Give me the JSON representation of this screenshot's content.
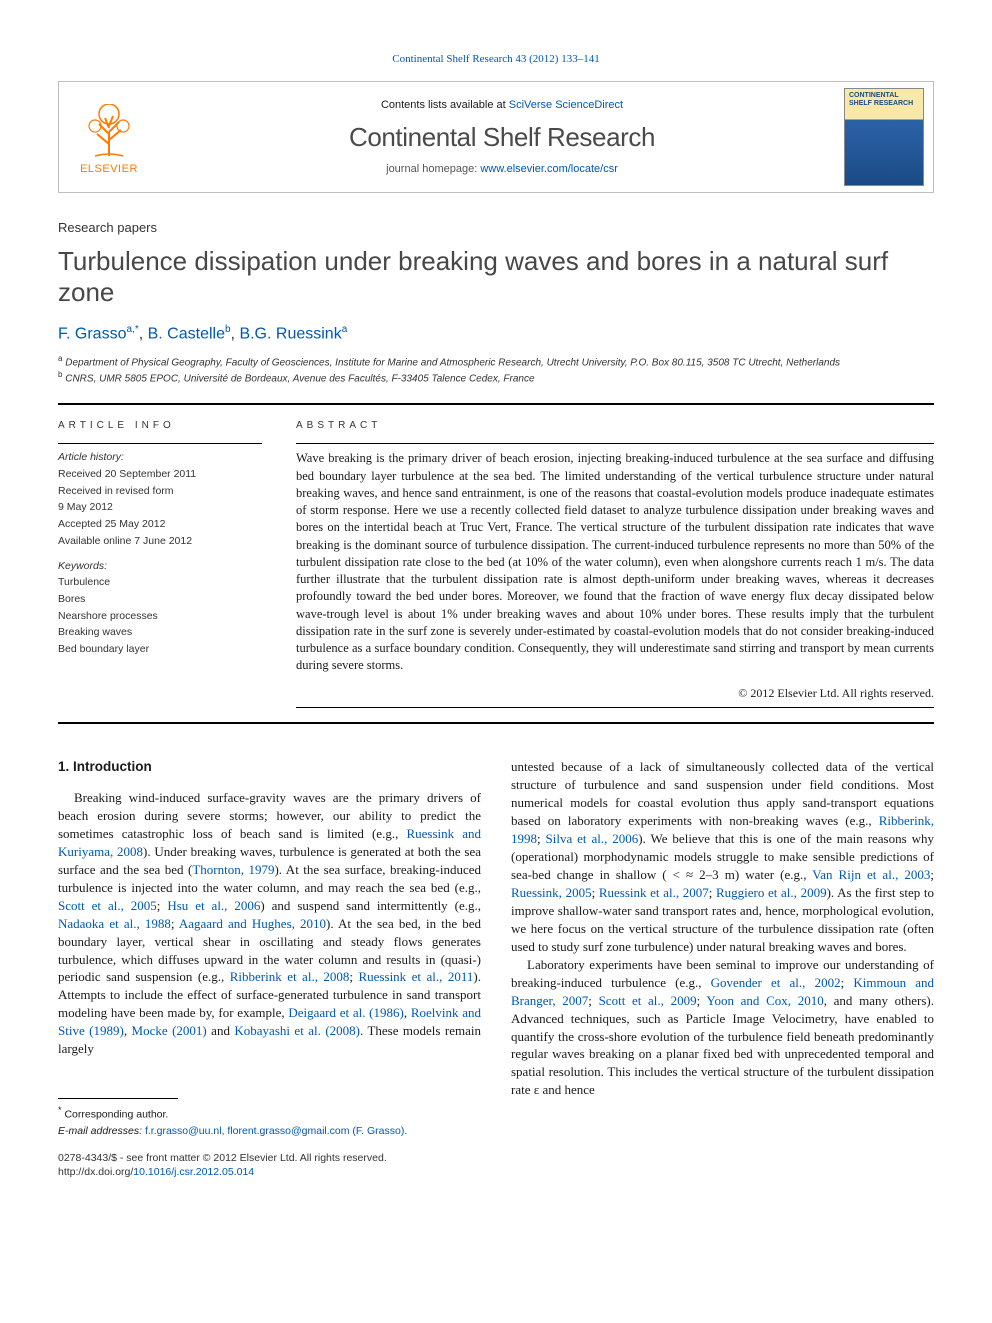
{
  "top_link": {
    "journal": "Continental Shelf Research",
    "cite": "43 (2012) 133–141"
  },
  "header": {
    "contents_prefix": "Contents lists available at ",
    "contents_link": "SciVerse ScienceDirect",
    "journal_name": "Continental Shelf Research",
    "homepage_prefix": "journal homepage: ",
    "homepage_link": "www.elsevier.com/locate/csr",
    "elsevier_word": "ELSEVIER",
    "cover_title": "CONTINENTAL SHELF RESEARCH"
  },
  "section_label": "Research papers",
  "title": "Turbulence dissipation under breaking waves and bores in a natural surf zone",
  "authors": [
    {
      "name": "F. Grasso",
      "aff": "a,",
      "corr": "*"
    },
    {
      "name": "B. Castelle",
      "aff": "b",
      "corr": ""
    },
    {
      "name": "B.G. Ruessink",
      "aff": "a",
      "corr": ""
    }
  ],
  "affiliations": [
    {
      "mark": "a",
      "text": "Department of Physical Geography, Faculty of Geosciences, Institute for Marine and Atmospheric Research, Utrecht University, P.O. Box 80.115, 3508 TC Utrecht, Netherlands"
    },
    {
      "mark": "b",
      "text": "CNRS, UMR 5805 EPOC, Université de Bordeaux, Avenue des Facultés, F-33405 Talence Cedex, France"
    }
  ],
  "article_info": {
    "head": "article info",
    "history_head": "Article history:",
    "lines": [
      "Received 20 September 2011",
      "Received in revised form",
      "9 May 2012",
      "Accepted 25 May 2012",
      "Available online 7 June 2012"
    ],
    "keywords_head": "Keywords:",
    "keywords": [
      "Turbulence",
      "Bores",
      "Nearshore processes",
      "Breaking waves",
      "Bed boundary layer"
    ]
  },
  "abstract": {
    "head": "abstract",
    "text": "Wave breaking is the primary driver of beach erosion, injecting breaking-induced turbulence at the sea surface and diffusing bed boundary layer turbulence at the sea bed. The limited understanding of the vertical turbulence structure under natural breaking waves, and hence sand entrainment, is one of the reasons that coastal-evolution models produce inadequate estimates of storm response. Here we use a recently collected field dataset to analyze turbulence dissipation under breaking waves and bores on the intertidal beach at Truc Vert, France. The vertical structure of the turbulent dissipation rate indicates that wave breaking is the dominant source of turbulence dissipation. The current-induced turbulence represents no more than 50% of the turbulent dissipation rate close to the bed (at 10% of the water column), even when alongshore currents reach 1 m/s. The data further illustrate that the turbulent dissipation rate is almost depth-uniform under breaking waves, whereas it decreases profoundly toward the bed under bores. Moreover, we found that the fraction of wave energy flux decay dissipated below wave-trough level is about 1% under breaking waves and about 10% under bores. These results imply that the turbulent dissipation rate in the surf zone is severely under-estimated by coastal-evolution models that do not consider breaking-induced turbulence as a surface boundary condition. Consequently, they will underestimate sand stirring and transport by mean currents during severe storms.",
    "copyright": "© 2012 Elsevier Ltd. All rights reserved."
  },
  "intro_heading": "1. Introduction",
  "intro_col1": "Breaking wind-induced surface-gravity waves are the primary drivers of beach erosion during severe storms; however, our ability to predict the sometimes catastrophic loss of beach sand is limited (e.g., Ruessink and Kuriyama, 2008). Under breaking waves, turbulence is generated at both the sea surface and the sea bed (Thornton, 1979). At the sea surface, breaking-induced turbulence is injected into the water column, and may reach the sea bed (e.g., Scott et al., 2005; Hsu et al., 2006) and suspend sand intermittently (e.g., Nadaoka et al., 1988; Aagaard and Hughes, 2010). At the sea bed, in the bed boundary layer, vertical shear in oscillating and steady flows generates turbulence, which diffuses upward in the water column and results in (quasi-) periodic sand suspension (e.g., Ribberink et al., 2008; Ruessink et al., 2011). Attempts to include the effect of surface-generated turbulence in sand transport modeling have been made by, for example, Deigaard et al. (1986), Roelvink and Stive (1989), Mocke (2001) and Kobayashi et al. (2008). These models remain largely",
  "intro_col2a": "untested because of a lack of simultaneously collected data of the vertical structure of turbulence and sand suspension under field conditions. Most numerical models for coastal evolution thus apply sand-transport equations based on laboratory experiments with non-breaking waves (e.g., Ribberink, 1998; Silva et al., 2006). We believe that this is one of the main reasons why (operational) morphodynamic models struggle to make sensible predictions of sea-bed change in shallow ( < ≈ 2–3 m) water (e.g., Van Rijn et al., 2003; Ruessink, 2005; Ruessink et al., 2007; Ruggiero et al., 2009). As the first step to improve shallow-water sand transport rates and, hence, morphological evolution, we here focus on the vertical structure of the turbulence dissipation rate (often used to study surf zone turbulence) under natural breaking waves and bores.",
  "intro_col2b": "Laboratory experiments have been seminal to improve our understanding of breaking-induced turbulence (e.g., Govender et al., 2002; Kimmoun and Branger, 2007; Scott et al., 2009; Yoon and Cox, 2010, and many others). Advanced techniques, such as Particle Image Velocimetry, have enabled to quantify the cross-shore evolution of the turbulence field beneath predominantly regular waves breaking on a planar fixed bed with unprecedented temporal and spatial resolution. This includes the vertical structure of the turbulent dissipation rate ε and hence",
  "footnotes": {
    "corr": "* Corresponding author.",
    "email_label": "E-mail addresses:",
    "emails": "f.r.grasso@uu.nl, florent.grasso@gmail.com (F. Grasso)."
  },
  "doi_block": {
    "line1": "0278-4343/$ - see front matter © 2012 Elsevier Ltd. All rights reserved.",
    "line2_prefix": "http://dx.doi.org/",
    "doi": "10.1016/j.csr.2012.05.014"
  },
  "colors": {
    "link": "#0058b0",
    "elsevier_orange": "#ff7a00",
    "title_gray": "#474747",
    "cover_top": "#f9e8a8",
    "cover_bottom": "#1b4b85"
  }
}
